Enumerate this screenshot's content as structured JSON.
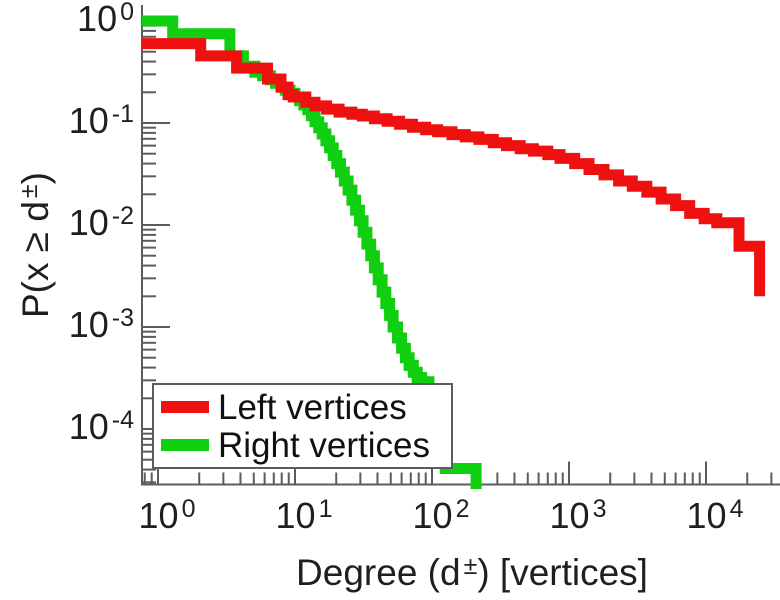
{
  "chart_data": {
    "type": "line",
    "subtype": "step-ccdf",
    "title": "",
    "scale": "log-log",
    "xlabel": {
      "text": "Degree (d",
      "sup": "±",
      "rest": ") [vertices]"
    },
    "ylabel": {
      "text": "P(x ≥ d",
      "sup": "±",
      "rest": ")"
    },
    "x_axis": {
      "scale": "log",
      "min": 0.76,
      "max": 34000,
      "tick_base": "10",
      "tick_exponents": [
        "0",
        "1",
        "2",
        "3",
        "4"
      ]
    },
    "y_axis": {
      "scale": "log",
      "min": 2.9e-05,
      "max": 1.4,
      "tick_base": "10",
      "tick_exponents": [
        "0",
        "-1",
        "-2",
        "-3",
        "-4"
      ]
    },
    "grid": false,
    "legend": {
      "position": "bottom-left",
      "items": [
        {
          "label": "Left vertices",
          "color": "#ef1010"
        },
        {
          "label": "Right vertices",
          "color": "#10ce10"
        }
      ]
    },
    "series": [
      {
        "name": "Right vertices",
        "color": "#10ce10",
        "line_width": 11,
        "points": [
          [
            0.76,
            1.0
          ],
          [
            1.28,
            0.75
          ],
          [
            3.35,
            0.455
          ],
          [
            4.2,
            0.36
          ],
          [
            5.1,
            0.315
          ],
          [
            5.8,
            0.29
          ],
          [
            6.6,
            0.265
          ],
          [
            7.2,
            0.245
          ],
          [
            7.9,
            0.225
          ],
          [
            8.5,
            0.21
          ],
          [
            9.2,
            0.195
          ],
          [
            10,
            0.18
          ],
          [
            10.8,
            0.165
          ],
          [
            11.6,
            0.15
          ],
          [
            12.4,
            0.135
          ],
          [
            13.2,
            0.118
          ],
          [
            14,
            0.103
          ],
          [
            14.9,
            0.09
          ],
          [
            15.8,
            0.078
          ],
          [
            16.8,
            0.067
          ],
          [
            17.9,
            0.057
          ],
          [
            19,
            0.048
          ],
          [
            20.2,
            0.04
          ],
          [
            21.5,
            0.033
          ],
          [
            22.9,
            0.027
          ],
          [
            24.4,
            0.022
          ],
          [
            26,
            0.0175
          ],
          [
            27.7,
            0.014
          ],
          [
            29.5,
            0.011
          ],
          [
            31.4,
            0.0085
          ],
          [
            33.5,
            0.0065
          ],
          [
            35.7,
            0.005
          ],
          [
            38,
            0.0038
          ],
          [
            40.5,
            0.0029
          ],
          [
            43.2,
            0.0022
          ],
          [
            46,
            0.0017
          ],
          [
            49,
            0.0013
          ],
          [
            52,
            0.001
          ],
          [
            56,
            0.00078
          ],
          [
            60,
            0.00062
          ],
          [
            64,
            0.0005
          ],
          [
            68,
            0.00042
          ],
          [
            73,
            0.00036
          ],
          [
            78,
            0.00032
          ],
          [
            84,
            0.00029
          ],
          [
            95,
            0.0002
          ],
          [
            105,
            0.00012
          ],
          [
            115,
            7e-05
          ],
          [
            125,
            4.1e-05
          ],
          [
            210,
            2.2e-05
          ]
        ]
      },
      {
        "name": "Left vertices",
        "color": "#ef1010",
        "line_width": 11,
        "points": [
          [
            0.76,
            0.6
          ],
          [
            2.05,
            0.455
          ],
          [
            3.75,
            0.345
          ],
          [
            6.3,
            0.27
          ],
          [
            7.9,
            0.225
          ],
          [
            8.9,
            0.19
          ],
          [
            9.7,
            0.18
          ],
          [
            12,
            0.16
          ],
          [
            14,
            0.147
          ],
          [
            17,
            0.137
          ],
          [
            21,
            0.128
          ],
          [
            26,
            0.122
          ],
          [
            31,
            0.117
          ],
          [
            38,
            0.11
          ],
          [
            47,
            0.104
          ],
          [
            58,
            0.097
          ],
          [
            72,
            0.091
          ],
          [
            90,
            0.086
          ],
          [
            110,
            0.082
          ],
          [
            140,
            0.077
          ],
          [
            175,
            0.073
          ],
          [
            220,
            0.069
          ],
          [
            280,
            0.064
          ],
          [
            350,
            0.06
          ],
          [
            440,
            0.056
          ],
          [
            550,
            0.053
          ],
          [
            700,
            0.049
          ],
          [
            860,
            0.045
          ],
          [
            1100,
            0.04
          ],
          [
            1400,
            0.035
          ],
          [
            1800,
            0.031
          ],
          [
            2300,
            0.027
          ],
          [
            2900,
            0.024
          ],
          [
            3700,
            0.021
          ],
          [
            4700,
            0.018
          ],
          [
            6000,
            0.0155
          ],
          [
            7600,
            0.013
          ],
          [
            9700,
            0.0115
          ],
          [
            12000,
            0.0105
          ],
          [
            17400,
            0.0062
          ],
          [
            24600,
            0.002
          ]
        ]
      }
    ]
  }
}
